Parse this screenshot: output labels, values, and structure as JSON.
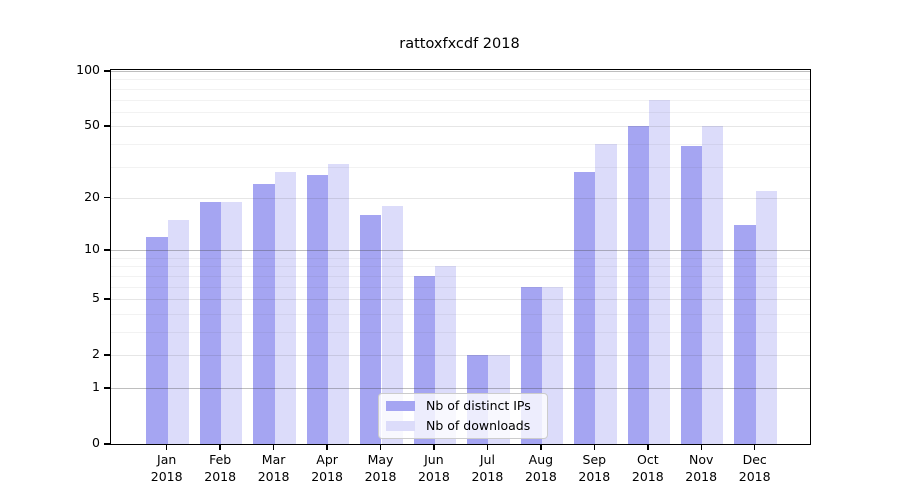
{
  "title": "rattoxfxcdf 2018",
  "chart_data": {
    "type": "bar",
    "title": "rattoxfxcdf 2018",
    "categories": [
      "Jan 2018",
      "Feb 2018",
      "Mar 2018",
      "Apr 2018",
      "May 2018",
      "Jun 2018",
      "Jul 2018",
      "Aug 2018",
      "Sep 2018",
      "Oct 2018",
      "Nov 2018",
      "Dec 2018"
    ],
    "x_tick_month_lines": [
      "Jan",
      "Feb",
      "Mar",
      "Apr",
      "May",
      "Jun",
      "Jul",
      "Aug",
      "Sep",
      "Oct",
      "Nov",
      "Dec"
    ],
    "x_tick_year_line": "2018",
    "series": [
      {
        "name": "Nb of distinct IPs",
        "color": "#a5a5f2",
        "values": [
          12,
          19,
          24,
          27,
          16,
          7,
          2,
          6,
          28,
          50,
          39,
          14
        ]
      },
      {
        "name": "Nb of downloads",
        "color": "#dcdcfa",
        "values": [
          15,
          19,
          28,
          31,
          18,
          8,
          2,
          6,
          40,
          70,
          50,
          22
        ]
      }
    ],
    "y_scale": "log10(value+1)",
    "ylim": [
      0,
      101
    ],
    "y_ticks": [
      100,
      50,
      20,
      10,
      5,
      2,
      1,
      0
    ],
    "y_tick_labels": [
      "100",
      "50",
      "20",
      "10",
      "5",
      "2",
      "1",
      "0"
    ],
    "y_gridlines_major": [
      1,
      10,
      100
    ],
    "y_gridlines_mid": [
      2,
      5,
      20,
      50
    ],
    "y_gridlines_minor": [
      3,
      4,
      6,
      7,
      8,
      9,
      30,
      40,
      60,
      70,
      80,
      90
    ],
    "grid": true,
    "legend_position": "lower center inside plot"
  },
  "legend": {
    "items": [
      {
        "label": "Nb of distinct IPs",
        "color": "#a5a5f2"
      },
      {
        "label": "Nb of downloads",
        "color": "#dcdcfa"
      }
    ]
  },
  "colors": {
    "bar_distinct_ips": "#a5a5f2",
    "bar_downloads": "#dcdcfa",
    "spine": "#000000",
    "background": "#ffffff"
  }
}
